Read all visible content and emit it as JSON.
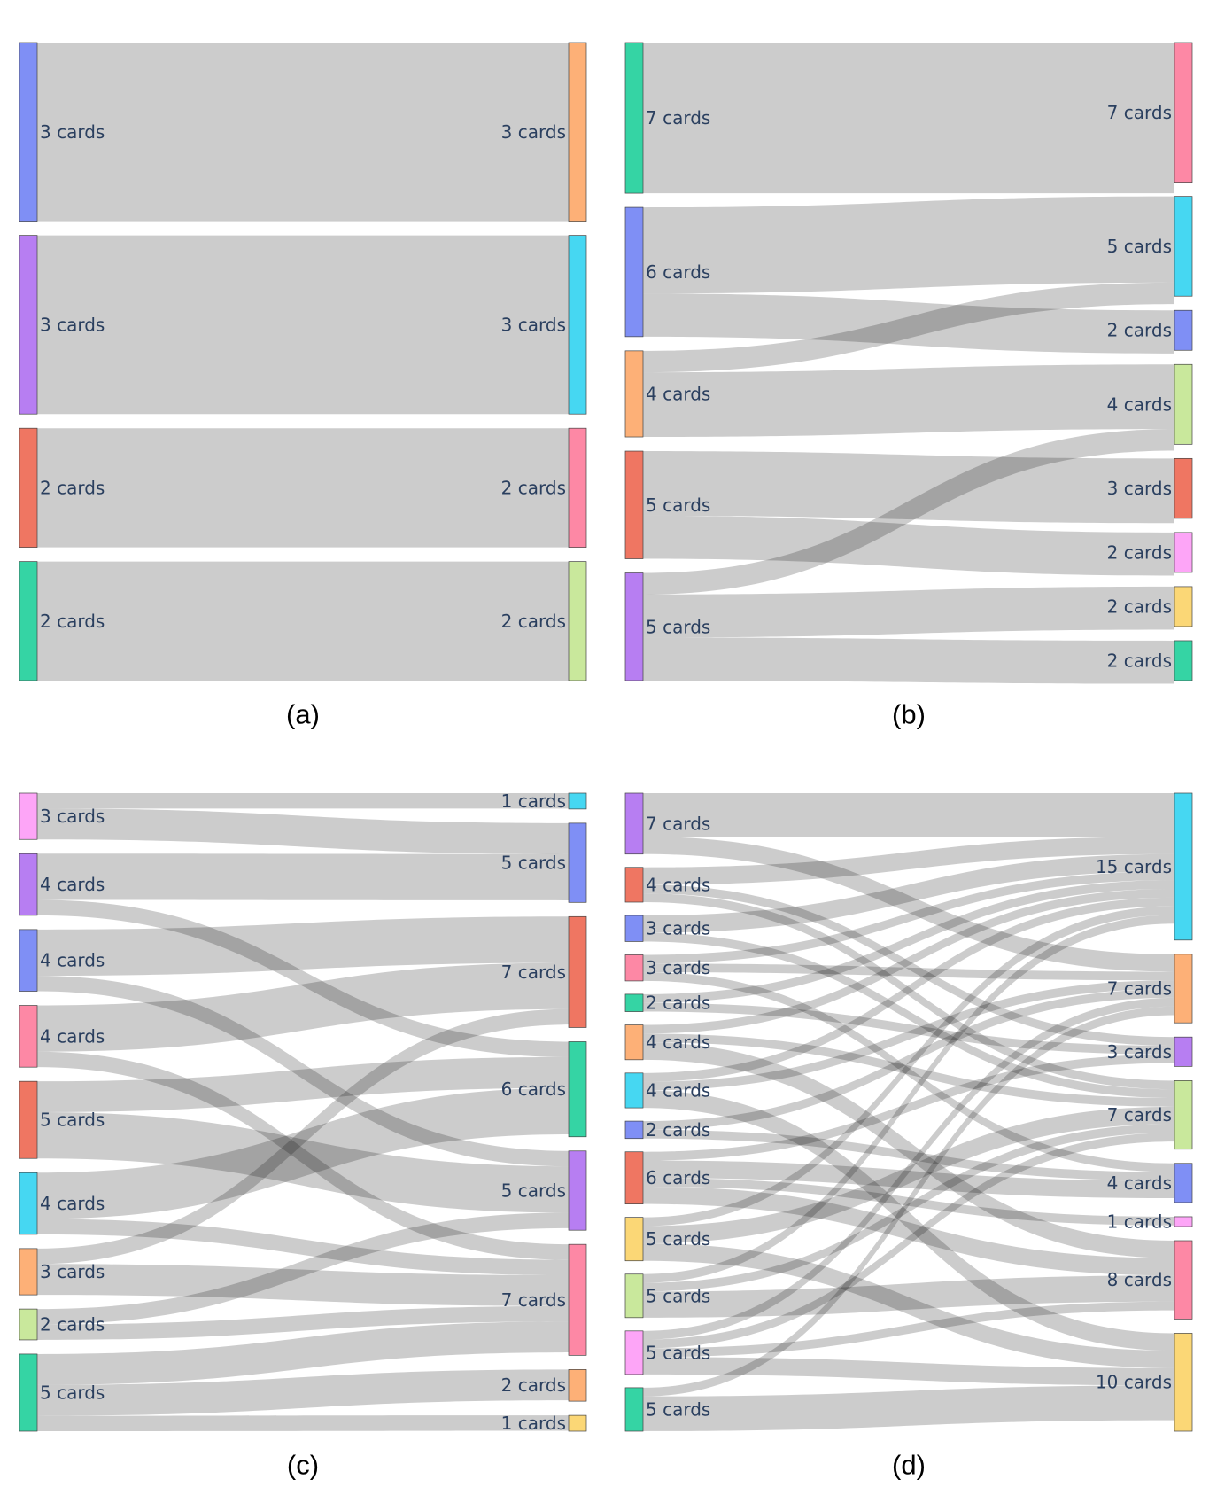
{
  "chart_data": [
    {
      "type": "sankey",
      "caption": "(a)",
      "sources": [
        {
          "label": "3 cards",
          "value": 3,
          "color": "#7f8ff5"
        },
        {
          "label": "3 cards",
          "value": 3,
          "color": "#b77ef2"
        },
        {
          "label": "2 cards",
          "value": 2,
          "color": "#ef7662"
        },
        {
          "label": "2 cards",
          "value": 2,
          "color": "#35d4a4"
        }
      ],
      "targets": [
        {
          "label": "3 cards",
          "value": 3,
          "color": "#fdb077"
        },
        {
          "label": "3 cards",
          "value": 3,
          "color": "#46d7f2"
        },
        {
          "label": "2 cards",
          "value": 2,
          "color": "#fd88a5"
        },
        {
          "label": "2 cards",
          "value": 2,
          "color": "#c9e89c"
        }
      ],
      "links": [
        {
          "source": 0,
          "target": 0,
          "value": 3
        },
        {
          "source": 1,
          "target": 1,
          "value": 3
        },
        {
          "source": 2,
          "target": 2,
          "value": 2
        },
        {
          "source": 3,
          "target": 3,
          "value": 2
        }
      ]
    },
    {
      "type": "sankey",
      "caption": "(b)",
      "sources": [
        {
          "label": "7 cards",
          "value": 7,
          "color": "#35d4a4"
        },
        {
          "label": "6 cards",
          "value": 6,
          "color": "#7f8ff5"
        },
        {
          "label": "4 cards",
          "value": 4,
          "color": "#fdb077"
        },
        {
          "label": "5 cards",
          "value": 5,
          "color": "#ef7662"
        },
        {
          "label": "5 cards",
          "value": 5,
          "color": "#b77ef2"
        }
      ],
      "targets": [
        {
          "label": "7 cards",
          "value": 7,
          "color": "#fd88a5"
        },
        {
          "label": "5 cards",
          "value": 5,
          "color": "#46d7f2"
        },
        {
          "label": "2 cards",
          "value": 2,
          "color": "#7f8ff5"
        },
        {
          "label": "4 cards",
          "value": 4,
          "color": "#c9e89c"
        },
        {
          "label": "3 cards",
          "value": 3,
          "color": "#ef7662"
        },
        {
          "label": "2 cards",
          "value": 2,
          "color": "#fda5f7"
        },
        {
          "label": "2 cards",
          "value": 2,
          "color": "#fbd776"
        },
        {
          "label": "2 cards",
          "value": 2,
          "color": "#35d4a4"
        }
      ],
      "links": [
        {
          "source": 0,
          "target": 0,
          "value": 7
        },
        {
          "source": 1,
          "target": 1,
          "value": 4
        },
        {
          "source": 1,
          "target": 2,
          "value": 2
        },
        {
          "source": 2,
          "target": 1,
          "value": 1
        },
        {
          "source": 2,
          "target": 3,
          "value": 3
        },
        {
          "source": 3,
          "target": 4,
          "value": 3
        },
        {
          "source": 3,
          "target": 5,
          "value": 2
        },
        {
          "source": 4,
          "target": 3,
          "value": 1
        },
        {
          "source": 4,
          "target": 6,
          "value": 2
        },
        {
          "source": 4,
          "target": 7,
          "value": 2
        }
      ]
    },
    {
      "type": "sankey",
      "caption": "(c)",
      "sources": [
        {
          "label": "3 cards",
          "value": 3,
          "color": "#fda5f7"
        },
        {
          "label": "4 cards",
          "value": 4,
          "color": "#b77ef2"
        },
        {
          "label": "4 cards",
          "value": 4,
          "color": "#7f8ff5"
        },
        {
          "label": "4 cards",
          "value": 4,
          "color": "#fd88a5"
        },
        {
          "label": "5 cards",
          "value": 5,
          "color": "#ef7662"
        },
        {
          "label": "4 cards",
          "value": 4,
          "color": "#46d7f2"
        },
        {
          "label": "3 cards",
          "value": 3,
          "color": "#fdb077"
        },
        {
          "label": "2 cards",
          "value": 2,
          "color": "#c9e89c"
        },
        {
          "label": "5 cards",
          "value": 5,
          "color": "#35d4a4"
        }
      ],
      "targets": [
        {
          "label": "1 cards",
          "value": 1,
          "color": "#46d7f2"
        },
        {
          "label": "5 cards",
          "value": 5,
          "color": "#7f8ff5"
        },
        {
          "label": "7 cards",
          "value": 7,
          "color": "#ef7662"
        },
        {
          "label": "6 cards",
          "value": 6,
          "color": "#35d4a4"
        },
        {
          "label": "5 cards",
          "value": 5,
          "color": "#b77ef2"
        },
        {
          "label": "7 cards",
          "value": 7,
          "color": "#fd88a5"
        },
        {
          "label": "2 cards",
          "value": 2,
          "color": "#fdb077"
        },
        {
          "label": "1 cards",
          "value": 1,
          "color": "#fbd776"
        }
      ],
      "links": [
        {
          "source": 0,
          "target": 0,
          "value": 1
        },
        {
          "source": 0,
          "target": 1,
          "value": 2
        },
        {
          "source": 1,
          "target": 1,
          "value": 3
        },
        {
          "source": 1,
          "target": 3,
          "value": 1
        },
        {
          "source": 2,
          "target": 2,
          "value": 3
        },
        {
          "source": 2,
          "target": 4,
          "value": 1
        },
        {
          "source": 3,
          "target": 2,
          "value": 3
        },
        {
          "source": 3,
          "target": 5,
          "value": 1
        },
        {
          "source": 4,
          "target": 3,
          "value": 2
        },
        {
          "source": 4,
          "target": 4,
          "value": 3
        },
        {
          "source": 5,
          "target": 3,
          "value": 3
        },
        {
          "source": 5,
          "target": 5,
          "value": 1
        },
        {
          "source": 6,
          "target": 2,
          "value": 1
        },
        {
          "source": 6,
          "target": 5,
          "value": 2
        },
        {
          "source": 7,
          "target": 4,
          "value": 1
        },
        {
          "source": 7,
          "target": 5,
          "value": 1
        },
        {
          "source": 8,
          "target": 5,
          "value": 2
        },
        {
          "source": 8,
          "target": 6,
          "value": 2
        },
        {
          "source": 8,
          "target": 7,
          "value": 1
        }
      ]
    },
    {
      "type": "sankey",
      "caption": "(d)",
      "sources": [
        {
          "label": "7 cards",
          "value": 7,
          "color": "#b77ef2"
        },
        {
          "label": "4 cards",
          "value": 4,
          "color": "#ef7662"
        },
        {
          "label": "3 cards",
          "value": 3,
          "color": "#7f8ff5"
        },
        {
          "label": "3 cards",
          "value": 3,
          "color": "#fd88a5"
        },
        {
          "label": "2 cards",
          "value": 2,
          "color": "#35d4a4"
        },
        {
          "label": "4 cards",
          "value": 4,
          "color": "#fdb077"
        },
        {
          "label": "4 cards",
          "value": 4,
          "color": "#46d7f2"
        },
        {
          "label": "2 cards",
          "value": 2,
          "color": "#7f8ff5"
        },
        {
          "label": "6 cards",
          "value": 6,
          "color": "#ef7662"
        },
        {
          "label": "5 cards",
          "value": 5,
          "color": "#fbd776"
        },
        {
          "label": "5 cards",
          "value": 5,
          "color": "#c9e89c"
        },
        {
          "label": "5 cards",
          "value": 5,
          "color": "#fda5f7"
        },
        {
          "label": "5 cards",
          "value": 5,
          "color": "#35d4a4"
        }
      ],
      "targets": [
        {
          "label": "15 cards",
          "value": 15,
          "color": "#46d7f2"
        },
        {
          "label": "7 cards",
          "value": 7,
          "color": "#fdb077"
        },
        {
          "label": "3 cards",
          "value": 3,
          "color": "#b77ef2"
        },
        {
          "label": "7 cards",
          "value": 7,
          "color": "#c9e89c"
        },
        {
          "label": "4 cards",
          "value": 4,
          "color": "#7f8ff5"
        },
        {
          "label": "1 cards",
          "value": 1,
          "color": "#fda5f7"
        },
        {
          "label": "8 cards",
          "value": 8,
          "color": "#fd88a5"
        },
        {
          "label": "10 cards",
          "value": 10,
          "color": "#fbd776"
        }
      ],
      "links": [
        {
          "source": 0,
          "target": 0,
          "value": 5
        },
        {
          "source": 0,
          "target": 1,
          "value": 2
        },
        {
          "source": 1,
          "target": 0,
          "value": 2
        },
        {
          "source": 1,
          "target": 2,
          "value": 1
        },
        {
          "source": 1,
          "target": 3,
          "value": 1
        },
        {
          "source": 2,
          "target": 0,
          "value": 2
        },
        {
          "source": 2,
          "target": 3,
          "value": 1
        },
        {
          "source": 3,
          "target": 0,
          "value": 1
        },
        {
          "source": 3,
          "target": 1,
          "value": 1
        },
        {
          "source": 3,
          "target": 4,
          "value": 1
        },
        {
          "source": 4,
          "target": 0,
          "value": 1
        },
        {
          "source": 4,
          "target": 2,
          "value": 1
        },
        {
          "source": 5,
          "target": 0,
          "value": 1
        },
        {
          "source": 5,
          "target": 3,
          "value": 1
        },
        {
          "source": 5,
          "target": 6,
          "value": 2
        },
        {
          "source": 6,
          "target": 0,
          "value": 1
        },
        {
          "source": 6,
          "target": 1,
          "value": 1
        },
        {
          "source": 6,
          "target": 7,
          "value": 2
        },
        {
          "source": 7,
          "target": 1,
          "value": 1
        },
        {
          "source": 7,
          "target": 4,
          "value": 1
        },
        {
          "source": 8,
          "target": 2,
          "value": 1
        },
        {
          "source": 8,
          "target": 4,
          "value": 2
        },
        {
          "source": 8,
          "target": 5,
          "value": 1
        },
        {
          "source": 8,
          "target": 6,
          "value": 2
        },
        {
          "source": 9,
          "target": 0,
          "value": 1
        },
        {
          "source": 9,
          "target": 3,
          "value": 2
        },
        {
          "source": 9,
          "target": 7,
          "value": 2
        },
        {
          "source": 10,
          "target": 0,
          "value": 1
        },
        {
          "source": 10,
          "target": 3,
          "value": 1
        },
        {
          "source": 10,
          "target": 6,
          "value": 3
        },
        {
          "source": 11,
          "target": 1,
          "value": 1
        },
        {
          "source": 11,
          "target": 3,
          "value": 1
        },
        {
          "source": 11,
          "target": 6,
          "value": 1
        },
        {
          "source": 11,
          "target": 7,
          "value": 2
        },
        {
          "source": 12,
          "target": 1,
          "value": 1
        },
        {
          "source": 12,
          "target": 7,
          "value": 4
        }
      ]
    }
  ]
}
